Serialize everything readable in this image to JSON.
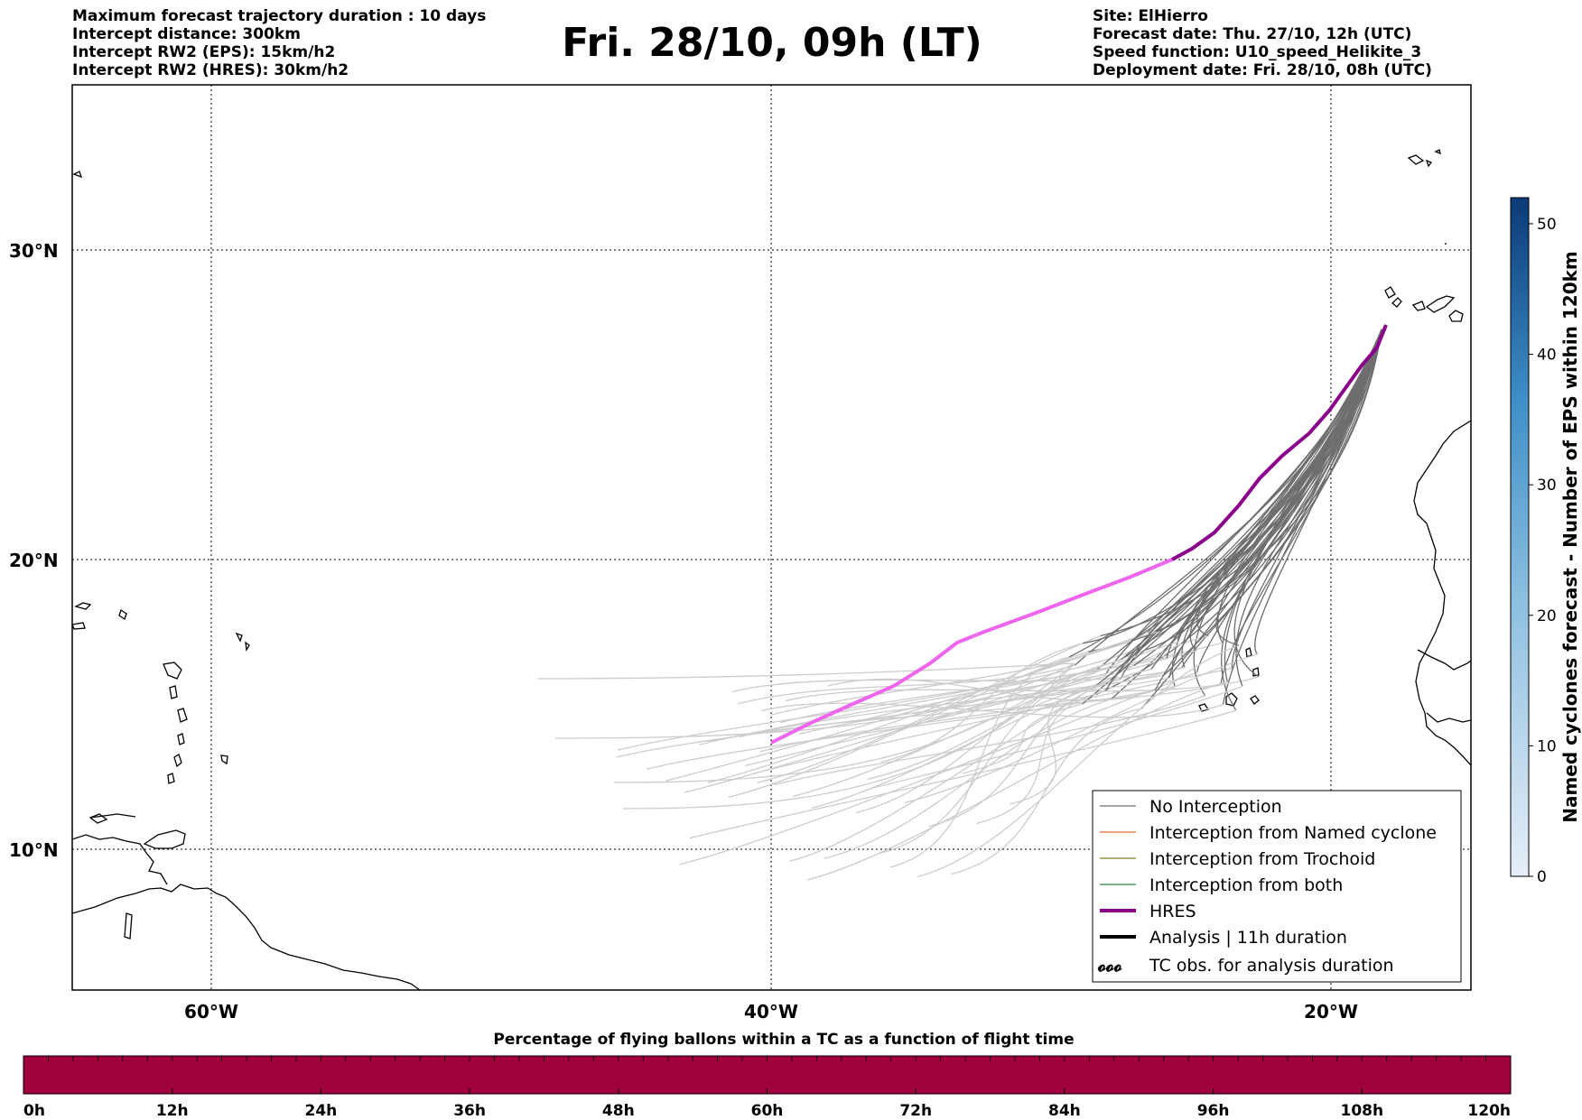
{
  "header": {
    "left_lines": [
      "Maximum forecast trajectory duration : 10 days",
      "Intercept distance: 300km",
      "Intercept RW2 (EPS):  15km/h2",
      "Intercept RW2 (HRES): 30km/h2"
    ],
    "title": "Fri. 28/10, 09h (LT)",
    "right_lines": [
      "Site: ElHierro",
      "Forecast date: Thu. 27/10, 12h (UTC)",
      "Speed function: U10_speed_Helikite_3",
      "Deployment date: Fri. 28/10, 08h (UTC)"
    ]
  },
  "map": {
    "lat_labels": [
      "30°N",
      "20°N",
      "10°N"
    ],
    "lon_labels": [
      "60°W",
      "40°W",
      "20°W"
    ],
    "colors": {
      "no_interception": "#6e6e6e",
      "no_interception_late": "#cccccc",
      "named_cyclone": "#e8662c",
      "trochoid": "#7f7f20",
      "both": "#2e8b3d",
      "hres": "#8b008b",
      "hres_late": "#ee66ee",
      "analysis": "#000000"
    }
  },
  "legend": {
    "items": [
      {
        "label": "No Interception",
        "style": "thin",
        "color": "#6e6e6e"
      },
      {
        "label": "Interception from Named cyclone",
        "style": "thin",
        "color": "#e8662c"
      },
      {
        "label": "Interception from Trochoid",
        "style": "thin",
        "color": "#7f7f20"
      },
      {
        "label": "Interception from both",
        "style": "thin",
        "color": "#2e8b3d"
      },
      {
        "label": "HRES",
        "style": "thick",
        "color": "#8b008b"
      },
      {
        "label": "Analysis | 11h duration",
        "style": "thick",
        "color": "#000000"
      },
      {
        "label": "TC obs. for analysis duration",
        "style": "symbols",
        "color": "#000000"
      }
    ]
  },
  "side_colorbar": {
    "label": "Named cyclones forecast - Number of EPS within 120km",
    "ticks": [
      "0",
      "10",
      "20",
      "30",
      "40",
      "50"
    ],
    "range": [
      0,
      52
    ],
    "color_low": "#e6eef8",
    "color_high": "#0a3a78"
  },
  "bottom_colorbar": {
    "title": "Percentage of flying ballons within a TC as a function of flight time",
    "ticks": [
      "0h",
      "12h",
      "24h",
      "36h",
      "48h",
      "60h",
      "72h",
      "84h",
      "96h",
      "108h",
      "120h"
    ],
    "fill_color": "#a0003c"
  }
}
